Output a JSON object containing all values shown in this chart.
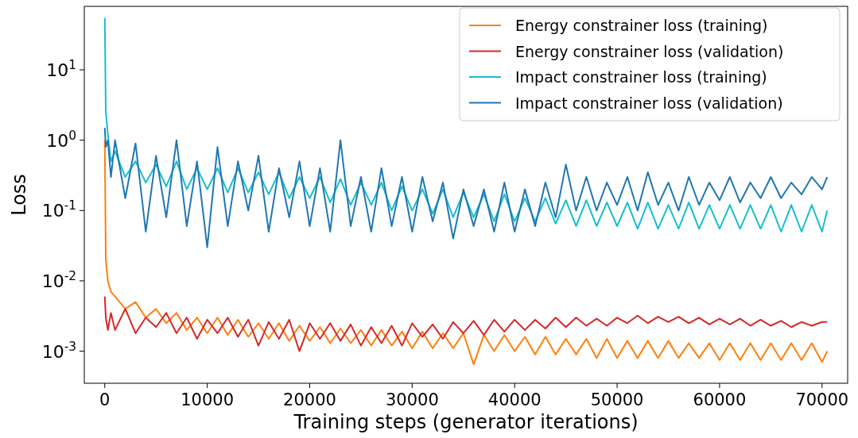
{
  "chart_data": {
    "type": "line",
    "xlabel": "Training steps (generator iterations)",
    "ylabel": "Loss",
    "log": "y",
    "legend": "top right",
    "grid": false,
    "line_style": "solid",
    "marker": "none",
    "xlim": [
      -2000,
      72500
    ],
    "xticks": [
      0,
      10000,
      20000,
      30000,
      40000,
      50000,
      60000,
      70000
    ],
    "ylim": [
      0.00035,
      80
    ],
    "yticks": [
      {
        "value": 0.001,
        "label": "10$^{-3}$"
      },
      {
        "value": 0.01,
        "label": "10$^{-2}$"
      },
      {
        "value": 0.1,
        "label": "10$^{-1}$"
      },
      {
        "value": 1,
        "label": "10$^{0}$"
      },
      {
        "value": 10,
        "label": "10$^{1}$"
      }
    ],
    "x": [
      0,
      100,
      300,
      600,
      1000,
      2000,
      3000,
      4000,
      5000,
      6000,
      7000,
      8000,
      9000,
      10000,
      11000,
      12000,
      13000,
      14000,
      15000,
      16000,
      17000,
      18000,
      19000,
      20000,
      21000,
      22000,
      23000,
      24000,
      25000,
      26000,
      27000,
      28000,
      29000,
      30000,
      31000,
      32000,
      33000,
      34000,
      35000,
      36000,
      37000,
      38000,
      39000,
      40000,
      41000,
      42000,
      43000,
      44000,
      45000,
      46000,
      47000,
      48000,
      49000,
      50000,
      51000,
      52000,
      53000,
      54000,
      55000,
      56000,
      57000,
      58000,
      59000,
      60000,
      61000,
      62000,
      63000,
      64000,
      65000,
      66000,
      67000,
      68000,
      69000,
      70000,
      70500
    ],
    "series": [
      {
        "name": "Energy constrainer loss (training)",
        "color": "#ff7f0e",
        "values": [
          1.0,
          0.02,
          0.01,
          0.007,
          0.006,
          0.004,
          0.005,
          0.003,
          0.004,
          0.0025,
          0.0035,
          0.002,
          0.003,
          0.0018,
          0.003,
          0.0017,
          0.0028,
          0.0016,
          0.0025,
          0.0015,
          0.0025,
          0.0014,
          0.0023,
          0.0014,
          0.0022,
          0.0013,
          0.0021,
          0.0013,
          0.002,
          0.0012,
          0.002,
          0.0012,
          0.0019,
          0.0011,
          0.0019,
          0.0011,
          0.0018,
          0.0011,
          0.0018,
          0.00065,
          0.0017,
          0.001,
          0.0017,
          0.001,
          0.0016,
          0.0009,
          0.0016,
          0.0009,
          0.0015,
          0.0009,
          0.0015,
          0.0008,
          0.0015,
          0.0008,
          0.0014,
          0.0008,
          0.0014,
          0.0008,
          0.0014,
          0.0008,
          0.0013,
          0.0008,
          0.0013,
          0.00075,
          0.0013,
          0.00075,
          0.0013,
          0.00075,
          0.0013,
          0.00075,
          0.0013,
          0.00075,
          0.0013,
          0.0007,
          0.001
        ]
      },
      {
        "name": "Energy constrainer loss (validation)",
        "color": "#d62728",
        "values": [
          0.006,
          0.003,
          0.002,
          0.0035,
          0.002,
          0.004,
          0.0018,
          0.003,
          0.0022,
          0.0035,
          0.0018,
          0.003,
          0.0015,
          0.0028,
          0.0018,
          0.003,
          0.0016,
          0.0028,
          0.0012,
          0.0026,
          0.0015,
          0.0028,
          0.001,
          0.0025,
          0.0015,
          0.0025,
          0.0014,
          0.0024,
          0.0012,
          0.0022,
          0.0013,
          0.0023,
          0.0012,
          0.0025,
          0.0016,
          0.0024,
          0.0015,
          0.0026,
          0.0018,
          0.0027,
          0.0017,
          0.0028,
          0.0019,
          0.0028,
          0.002,
          0.0028,
          0.0021,
          0.003,
          0.0022,
          0.003,
          0.0023,
          0.0029,
          0.0023,
          0.003,
          0.0025,
          0.0032,
          0.0025,
          0.0031,
          0.0026,
          0.0031,
          0.0025,
          0.003,
          0.0024,
          0.0029,
          0.0024,
          0.0029,
          0.0023,
          0.0028,
          0.0023,
          0.0027,
          0.0022,
          0.0026,
          0.0023,
          0.0026,
          0.0026
        ]
      },
      {
        "name": "Impact constrainer loss (training)",
        "color": "#17becf",
        "values": [
          55,
          2.5,
          1.2,
          0.5,
          0.7,
          0.3,
          0.5,
          0.25,
          0.45,
          0.22,
          0.5,
          0.2,
          0.4,
          0.2,
          0.4,
          0.18,
          0.4,
          0.18,
          0.35,
          0.17,
          0.35,
          0.15,
          0.3,
          0.15,
          0.3,
          0.13,
          0.28,
          0.12,
          0.25,
          0.12,
          0.25,
          0.1,
          0.22,
          0.1,
          0.2,
          0.09,
          0.2,
          0.08,
          0.18,
          0.08,
          0.17,
          0.07,
          0.17,
          0.07,
          0.15,
          0.07,
          0.15,
          0.065,
          0.14,
          0.06,
          0.14,
          0.06,
          0.13,
          0.06,
          0.13,
          0.055,
          0.13,
          0.055,
          0.12,
          0.055,
          0.13,
          0.055,
          0.12,
          0.055,
          0.12,
          0.055,
          0.12,
          0.055,
          0.12,
          0.05,
          0.12,
          0.05,
          0.12,
          0.05,
          0.1
        ]
      },
      {
        "name": "Impact constrainer loss (validation)",
        "color": "#1f77b4",
        "values": [
          1.5,
          0.8,
          1.0,
          0.3,
          1.0,
          0.15,
          0.9,
          0.05,
          0.6,
          0.08,
          1.0,
          0.06,
          0.5,
          0.03,
          0.8,
          0.06,
          0.5,
          0.1,
          0.6,
          0.05,
          0.4,
          0.08,
          0.5,
          0.06,
          0.4,
          0.05,
          1.0,
          0.06,
          0.3,
          0.05,
          0.4,
          0.06,
          0.3,
          0.05,
          0.3,
          0.07,
          0.25,
          0.04,
          0.2,
          0.06,
          0.2,
          0.05,
          0.25,
          0.05,
          0.2,
          0.06,
          0.25,
          0.08,
          0.45,
          0.1,
          0.3,
          0.1,
          0.25,
          0.12,
          0.3,
          0.1,
          0.35,
          0.12,
          0.25,
          0.1,
          0.3,
          0.12,
          0.25,
          0.14,
          0.3,
          0.13,
          0.25,
          0.15,
          0.3,
          0.15,
          0.25,
          0.17,
          0.3,
          0.2,
          0.3
        ]
      }
    ]
  }
}
